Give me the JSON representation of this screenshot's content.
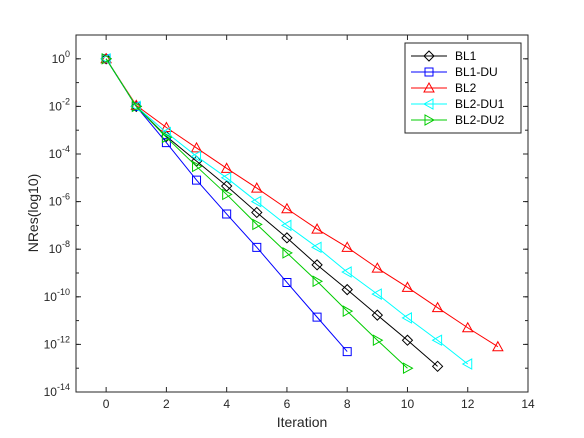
{
  "chart_data": {
    "type": "line",
    "title": "",
    "xlabel": "Iteration",
    "ylabel": "NRes(log10)",
    "xlim": [
      -1,
      14
    ],
    "ylim": [
      1e-14,
      10
    ],
    "yscale": "log",
    "xticks": [
      0,
      2,
      4,
      6,
      8,
      10,
      12,
      14
    ],
    "yticks": [
      {
        "value": 1,
        "mantissa": "10",
        "exp": "0"
      },
      {
        "value": 0.01,
        "mantissa": "10",
        "exp": "-2"
      },
      {
        "value": 0.0001,
        "mantissa": "10",
        "exp": "-4"
      },
      {
        "value": 1e-06,
        "mantissa": "10",
        "exp": "-6"
      },
      {
        "value": 1e-08,
        "mantissa": "10",
        "exp": "-8"
      },
      {
        "value": 1e-10,
        "mantissa": "10",
        "exp": "-10"
      },
      {
        "value": 1e-12,
        "mantissa": "10",
        "exp": "-12"
      },
      {
        "value": 1e-14,
        "mantissa": "10",
        "exp": "-14"
      }
    ],
    "grid": false,
    "legend_position": "top-right",
    "series": [
      {
        "name": "BL1",
        "color": "#000000",
        "marker": "diamond",
        "x": [
          0,
          1,
          2,
          3,
          4,
          5,
          6,
          7,
          8,
          9,
          10,
          11
        ],
        "y": [
          1,
          0.01,
          0.00055,
          5e-05,
          4.5e-06,
          3.5e-07,
          3e-08,
          2.2e-09,
          2e-10,
          1.7e-11,
          1.5e-12,
          1.2e-13
        ]
      },
      {
        "name": "BL1-DU",
        "color": "#0000ff",
        "marker": "square",
        "x": [
          0,
          1,
          2,
          3,
          4,
          5,
          6,
          7,
          8
        ],
        "y": [
          1,
          0.01,
          0.0003,
          8e-06,
          3e-07,
          1.2e-08,
          4e-10,
          1.4e-11,
          5e-13
        ]
      },
      {
        "name": "BL2",
        "color": "#ff0000",
        "marker": "triangle-up",
        "x": [
          0,
          1,
          2,
          3,
          4,
          5,
          6,
          7,
          8,
          9,
          10,
          11,
          12,
          13
        ],
        "y": [
          1,
          0.011,
          0.0013,
          0.00018,
          2.5e-05,
          3.7e-06,
          5e-07,
          7e-08,
          1.2e-08,
          1.6e-09,
          2.5e-10,
          3.5e-11,
          5e-12,
          8e-13
        ]
      },
      {
        "name": "BL2-DU1",
        "color": "#00ffff",
        "marker": "triangle-left",
        "x": [
          0,
          1,
          2,
          3,
          4,
          5,
          6,
          7,
          8,
          9,
          10,
          11,
          12
        ],
        "y": [
          1,
          0.01,
          0.0008,
          8e-05,
          1e-05,
          1e-06,
          1e-07,
          1.2e-08,
          1.1e-09,
          1.3e-10,
          1.3e-11,
          1.5e-12,
          1.5e-13
        ]
      },
      {
        "name": "BL2-DU2",
        "color": "#00cc00",
        "marker": "triangle-right",
        "x": [
          0,
          1,
          2,
          3,
          4,
          5,
          6,
          7,
          8,
          9,
          10
        ],
        "y": [
          1,
          0.01,
          0.0005,
          3e-05,
          2e-06,
          1.1e-07,
          7e-09,
          4.5e-10,
          2.5e-11,
          1.5e-12,
          1e-13
        ]
      }
    ]
  }
}
